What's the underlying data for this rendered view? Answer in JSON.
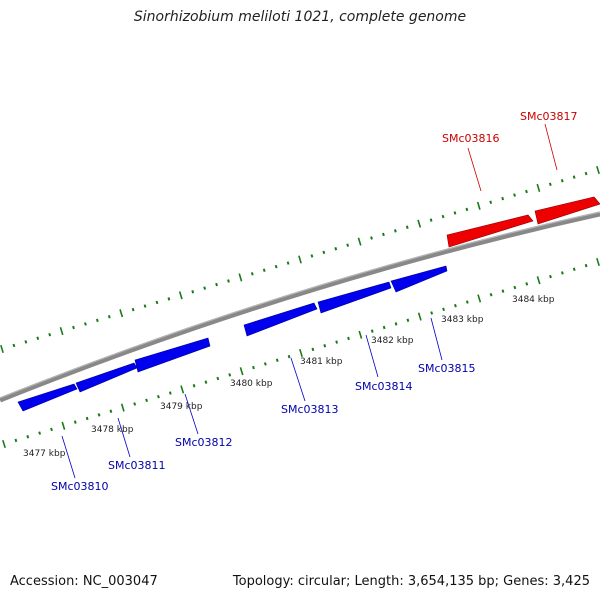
{
  "title": "Sinorhizobium meliloti 1021, complete genome",
  "footer": {
    "accession": "Accession: NC_003047",
    "summary": "Topology: circular; Length: 3,654,135 bp; Genes: 3,425"
  },
  "colors": {
    "forward_gene": "#ee0000",
    "reverse_gene": "#0000ee",
    "backbone": "#888888",
    "ticks": "#1a7a1a",
    "label_forward": "#cc0000",
    "label_reverse": "#0000aa"
  },
  "kbp_labels": [
    "3477 kbp",
    "3478 kbp",
    "3479 kbp",
    "3480 kbp",
    "3481 kbp",
    "3482 kbp",
    "3483 kbp",
    "3484 kbp"
  ],
  "genes": [
    {
      "name": "SMc03810",
      "strand": "reverse"
    },
    {
      "name": "SMc03811",
      "strand": "reverse"
    },
    {
      "name": "SMc03812",
      "strand": "reverse"
    },
    {
      "name": "SMc03813",
      "strand": "reverse"
    },
    {
      "name": "SMc03814",
      "strand": "reverse"
    },
    {
      "name": "SMc03815",
      "strand": "reverse"
    },
    {
      "name": "SMc03816",
      "strand": "forward"
    },
    {
      "name": "SMc03817",
      "strand": "forward"
    }
  ]
}
